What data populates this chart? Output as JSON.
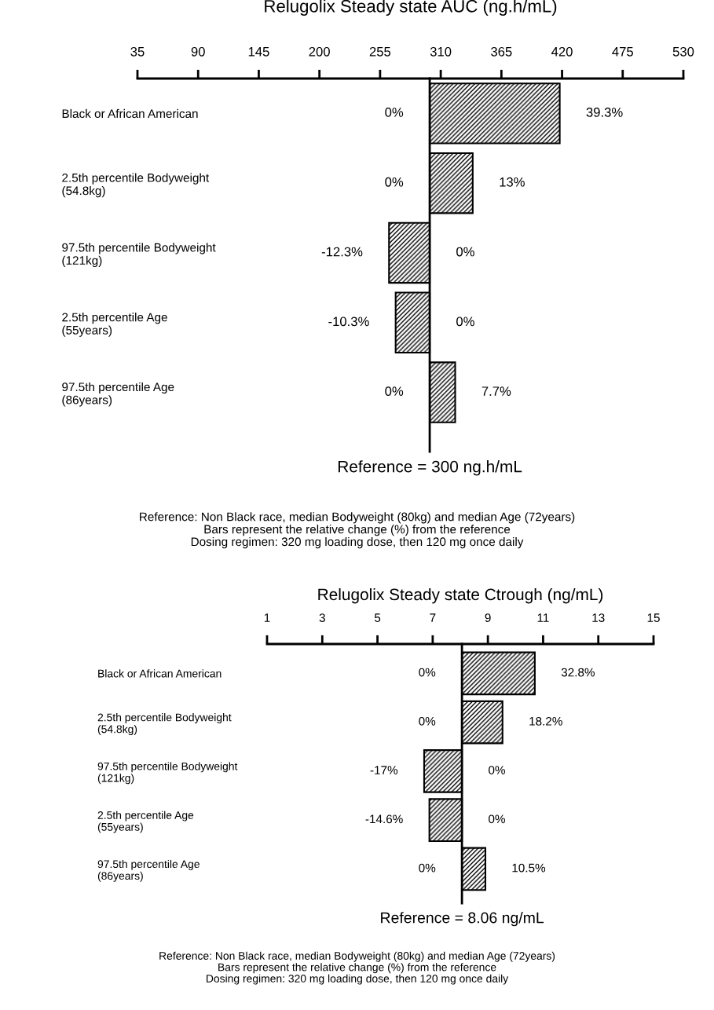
{
  "chart_data": [
    {
      "type": "bar",
      "orientation": "horizontal",
      "title": "Relugolix Steady state AUC (ng.h/mL)",
      "categories": [
        "Black or African American",
        "2.5th percentile Bodyweight\n(54.8kg)",
        "97.5th percentile Bodyweight\n(121kg)",
        "2.5th percentile Age\n(55years)",
        "97.5th percentile Age\n(86years)"
      ],
      "base": [
        300,
        300,
        300,
        300,
        300
      ],
      "values": [
        117.9,
        39,
        -36.9,
        -30.9,
        23.1
      ],
      "color": "#000000",
      "xlim": [
        35,
        530
      ],
      "xticks": [
        35,
        90,
        145,
        200,
        255,
        310,
        365,
        420,
        475,
        530
      ],
      "ref_lines": [
        {
          "axis": "x",
          "value": 300,
          "label": "Reference = 300 ng.h/mL"
        }
      ],
      "annotations": [
        {
          "text": "0%",
          "x": 300,
          "y": "Black or African American"
        },
        {
          "text": "39.3%",
          "x": 417.9,
          "y": "Black or African American"
        },
        {
          "text": "0%",
          "x": 300,
          "y": "2.5th percentile Bodyweight\n(54.8kg)"
        },
        {
          "text": "13%",
          "x": 339,
          "y": "2.5th percentile Bodyweight\n(54.8kg)"
        },
        {
          "text": "-12.3%",
          "x": 263.1,
          "y": "97.5th percentile Bodyweight\n(121kg)"
        },
        {
          "text": "0%",
          "x": 300,
          "y": "97.5th percentile Bodyweight\n(121kg)"
        },
        {
          "text": "-10.3%",
          "x": 269.1,
          "y": "2.5th percentile Age\n(55years)"
        },
        {
          "text": "0%",
          "x": 300,
          "y": "2.5th percentile Age\n(55years)"
        },
        {
          "text": "0%",
          "x": 300,
          "y": "97.5th percentile Age\n(86years)"
        },
        {
          "text": "7.7%",
          "x": 323.1,
          "y": "97.5th percentile Age\n(86years)"
        },
        "Reference: Non Black race, median Bodyweight (80kg) and median Age (72years)\nBars represent the relative change (%) from the reference\nDosing regimen: 320 mg loading dose, then 120 mg once daily"
      ]
    },
    {
      "type": "bar",
      "orientation": "horizontal",
      "title": "Relugolix Steady state Ctrough (ng/mL)",
      "categories": [
        "Black or African American",
        "2.5th percentile Bodyweight\n(54.8kg)",
        "97.5th percentile Bodyweight\n(121kg)",
        "2.5th percentile Age\n(55years)",
        "97.5th percentile Age\n(86years)"
      ],
      "base": [
        8.06,
        8.06,
        8.06,
        8.06,
        8.06
      ],
      "values": [
        2.64,
        1.47,
        -1.37,
        -1.18,
        0.85
      ],
      "color": "#000000",
      "xlim": [
        1,
        15
      ],
      "xticks": [
        1,
        3,
        5,
        7,
        9,
        11,
        13,
        15
      ],
      "ref_lines": [
        {
          "axis": "x",
          "value": 8.06,
          "label": "Reference = 8.06 ng/mL"
        }
      ],
      "annotations": [
        {
          "text": "0%",
          "x": 8.06,
          "y": "Black or African American"
        },
        {
          "text": "32.8%",
          "x": 10.7,
          "y": "Black or African American"
        },
        {
          "text": "0%",
          "x": 8.06,
          "y": "2.5th percentile Bodyweight\n(54.8kg)"
        },
        {
          "text": "18.2%",
          "x": 9.53,
          "y": "2.5th percentile Bodyweight\n(54.8kg)"
        },
        {
          "text": "-17%",
          "x": 6.69,
          "y": "97.5th percentile Bodyweight\n(121kg)"
        },
        {
          "text": "0%",
          "x": 8.06,
          "y": "97.5th percentile Bodyweight\n(121kg)"
        },
        {
          "text": "-14.6%",
          "x": 6.88,
          "y": "2.5th percentile Age\n(55years)"
        },
        {
          "text": "0%",
          "x": 8.06,
          "y": "2.5th percentile Age\n(55years)"
        },
        {
          "text": "0%",
          "x": 8.06,
          "y": "97.5th percentile Age\n(86years)"
        },
        {
          "text": "10.5%",
          "x": 8.91,
          "y": "97.5th percentile Age\n(86years)"
        },
        "Reference: Non Black race, median Bodyweight (80kg) and median Age (72years)\nBars represent the relative change (%) from the reference\nDosing regimen: 320 mg loading dose, then 120 mg once daily"
      ]
    }
  ]
}
